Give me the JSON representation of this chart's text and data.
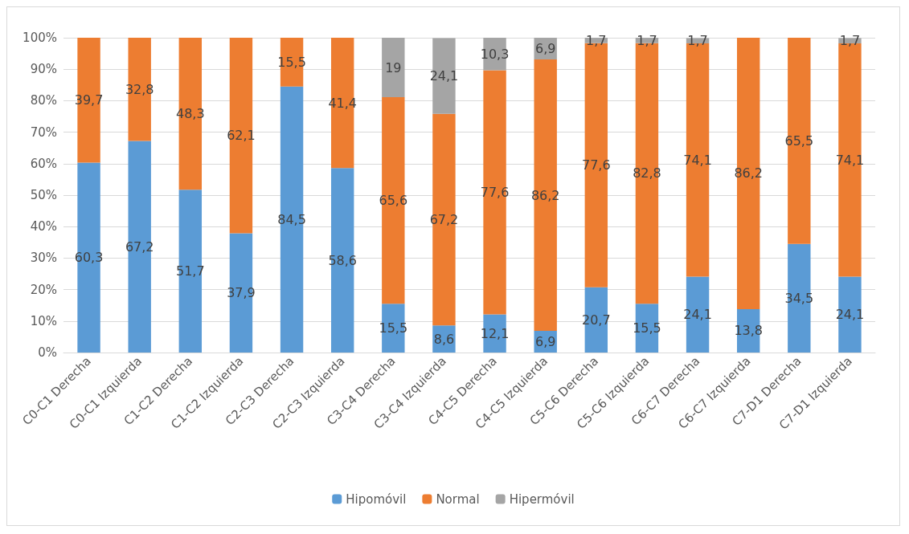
{
  "chart_data": {
    "type": "bar",
    "stacked": true,
    "categories": [
      "C0-C1 Derecha",
      "C0-C1 Izquierda",
      "C1-C2 Derecha",
      "C1-C2 Izquierda",
      "C2-C3 Derecha",
      "C2-C3 Izquierda",
      "C3-C4 Derecha",
      "C3-C4 Izquierda",
      "C4-C5 Derecha",
      "C4-C5 Izquierda",
      "C5-C6 Derecha",
      "C5-C6 Izquierda",
      "C6-C7 Derecha",
      "C6-C7 Izquierda",
      "C7-D1 Derecha",
      "C7-D1 Izquierda"
    ],
    "series": [
      {
        "name": "Hipomóvil",
        "color": "#5b9bd5",
        "values": [
          60.3,
          67.2,
          51.7,
          37.9,
          84.5,
          58.6,
          15.5,
          8.6,
          12.1,
          6.9,
          20.7,
          15.5,
          24.1,
          13.8,
          34.5,
          24.1
        ],
        "value_labels": [
          "60,3",
          "67,2",
          "51,7",
          "37,9",
          "84,5",
          "58,6",
          "15,5",
          "8,6",
          "12,1",
          "6,9",
          "20,7",
          "15,5",
          "24,1",
          "13,8",
          "34,5",
          "24,1"
        ]
      },
      {
        "name": "Normal",
        "color": "#ed7d31",
        "values": [
          39.7,
          32.8,
          48.3,
          62.1,
          15.5,
          41.4,
          65.6,
          67.2,
          77.6,
          86.2,
          77.6,
          82.8,
          74.1,
          86.2,
          65.5,
          74.1
        ],
        "value_labels": [
          "39,7",
          "32,8",
          "48,3",
          "62,1",
          "15,5",
          "41,4",
          "65,6",
          "67,2",
          "77,6",
          "86,2",
          "77,6",
          "82,8",
          "74,1",
          "86,2",
          "65,5",
          "74,1"
        ]
      },
      {
        "name": "Hipermóvil",
        "color": "#a5a5a5",
        "values": [
          null,
          null,
          null,
          null,
          null,
          null,
          19,
          24.1,
          10.3,
          6.9,
          1.7,
          1.7,
          1.7,
          null,
          null,
          1.7
        ],
        "value_labels": [
          null,
          null,
          null,
          null,
          null,
          null,
          "19",
          "24,1",
          "10,3",
          "6,9",
          "1,7",
          "1,7",
          "1,7",
          null,
          null,
          "1,7"
        ]
      }
    ],
    "ylim": [
      0,
      100
    ],
    "yticks": [
      {
        "value": 0,
        "label": "0%"
      },
      {
        "value": 10,
        "label": "10%"
      },
      {
        "value": 20,
        "label": "20%"
      },
      {
        "value": 30,
        "label": "30%"
      },
      {
        "value": 40,
        "label": "40%"
      },
      {
        "value": 50,
        "label": "50%"
      },
      {
        "value": 60,
        "label": "60%"
      },
      {
        "value": 70,
        "label": "70%"
      },
      {
        "value": 80,
        "label": "80%"
      },
      {
        "value": 90,
        "label": "90%"
      },
      {
        "value": 100,
        "label": "100%"
      }
    ],
    "grid": "y",
    "legend": "bottom"
  }
}
